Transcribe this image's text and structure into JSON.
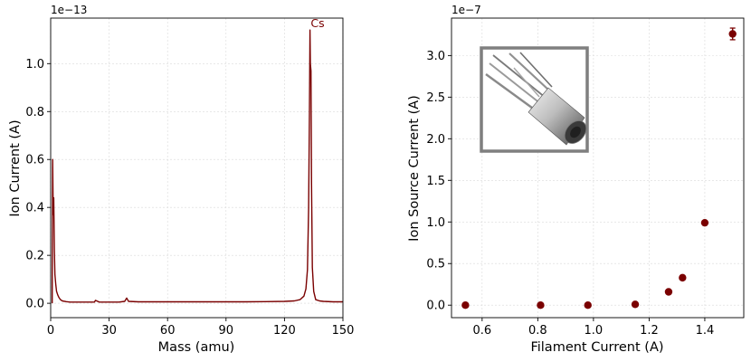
{
  "chart_data": [
    {
      "type": "line",
      "xlabel": "Mass (amu)",
      "ylabel": "Ion Current (A)",
      "y_offset_label": "1e−13",
      "xlim": [
        0,
        150
      ],
      "ylim": [
        -0.06,
        1.19
      ],
      "xticks": [
        0,
        30,
        60,
        90,
        120,
        150
      ],
      "xtick_labels": [
        "0",
        "30",
        "60",
        "90",
        "120",
        "150"
      ],
      "yticks": [
        0.0,
        0.2,
        0.4,
        0.6,
        0.8,
        1.0
      ],
      "ytick_labels": [
        "0.0",
        "0.2",
        "0.4",
        "0.6",
        "0.8",
        "1.0"
      ],
      "grid": true,
      "line_color": "#7a0000",
      "series": [
        {
          "x": [
            0.8,
            1.0,
            1.3,
            1.6,
            1.9,
            2.2,
            2.6,
            3.0,
            3.6,
            4.2,
            5.0,
            6.0,
            8.0,
            10,
            15,
            20,
            22.5,
            23,
            25,
            30,
            35,
            38,
            39,
            40,
            45,
            50,
            60,
            70,
            80,
            90,
            100,
            110,
            120,
            125,
            128,
            130,
            131,
            131.8,
            132.4,
            132.8,
            133.1,
            133.3,
            133.6,
            133.9,
            134.3,
            135,
            136,
            138,
            140,
            145,
            150
          ],
          "y": [
            0.0,
            0.6,
            0.37,
            0.44,
            0.22,
            0.12,
            0.08,
            0.05,
            0.035,
            0.025,
            0.015,
            0.01,
            0.007,
            0.005,
            0.005,
            0.005,
            0.005,
            0.012,
            0.005,
            0.005,
            0.005,
            0.008,
            0.022,
            0.008,
            0.006,
            0.006,
            0.006,
            0.006,
            0.006,
            0.006,
            0.006,
            0.007,
            0.008,
            0.01,
            0.015,
            0.03,
            0.06,
            0.14,
            0.4,
            0.8,
            1.14,
            1.0,
            0.97,
            0.5,
            0.15,
            0.05,
            0.015,
            0.01,
            0.008,
            0.006,
            0.006
          ]
        }
      ],
      "annotations": [
        {
          "text": "Cs",
          "x": 133,
          "y": 1.14
        }
      ]
    },
    {
      "type": "scatter",
      "xlabel": "Filament Current (A)",
      "ylabel": "Ion Source Current (A)",
      "y_offset_label": "1e−7",
      "xlim": [
        0.49,
        1.54
      ],
      "ylim": [
        -0.15,
        3.45
      ],
      "xticks": [
        0.6,
        0.8,
        1.0,
        1.2,
        1.4
      ],
      "xtick_labels": [
        "0.6",
        "0.8",
        "1.0",
        "1.2",
        "1.4"
      ],
      "yticks": [
        0.0,
        0.5,
        1.0,
        1.5,
        2.0,
        2.5,
        3.0
      ],
      "ytick_labels": [
        "0.0",
        "0.5",
        "1.0",
        "1.5",
        "2.0",
        "2.5",
        "3.0"
      ],
      "grid": true,
      "marker_color": "#7a0000",
      "series": [
        {
          "x": [
            0.54,
            0.81,
            0.98,
            1.15,
            1.27,
            1.32,
            1.4,
            1.5
          ],
          "y": [
            0.0,
            0.0,
            0.0,
            0.01,
            0.16,
            0.33,
            0.99,
            3.26
          ],
          "yerr": [
            0.0,
            0.0,
            0.0,
            0.0,
            0.0,
            0.0,
            0.0,
            0.07
          ]
        }
      ],
      "inset": {
        "description_icon": "filament-ion-source-photo-icon"
      }
    }
  ]
}
